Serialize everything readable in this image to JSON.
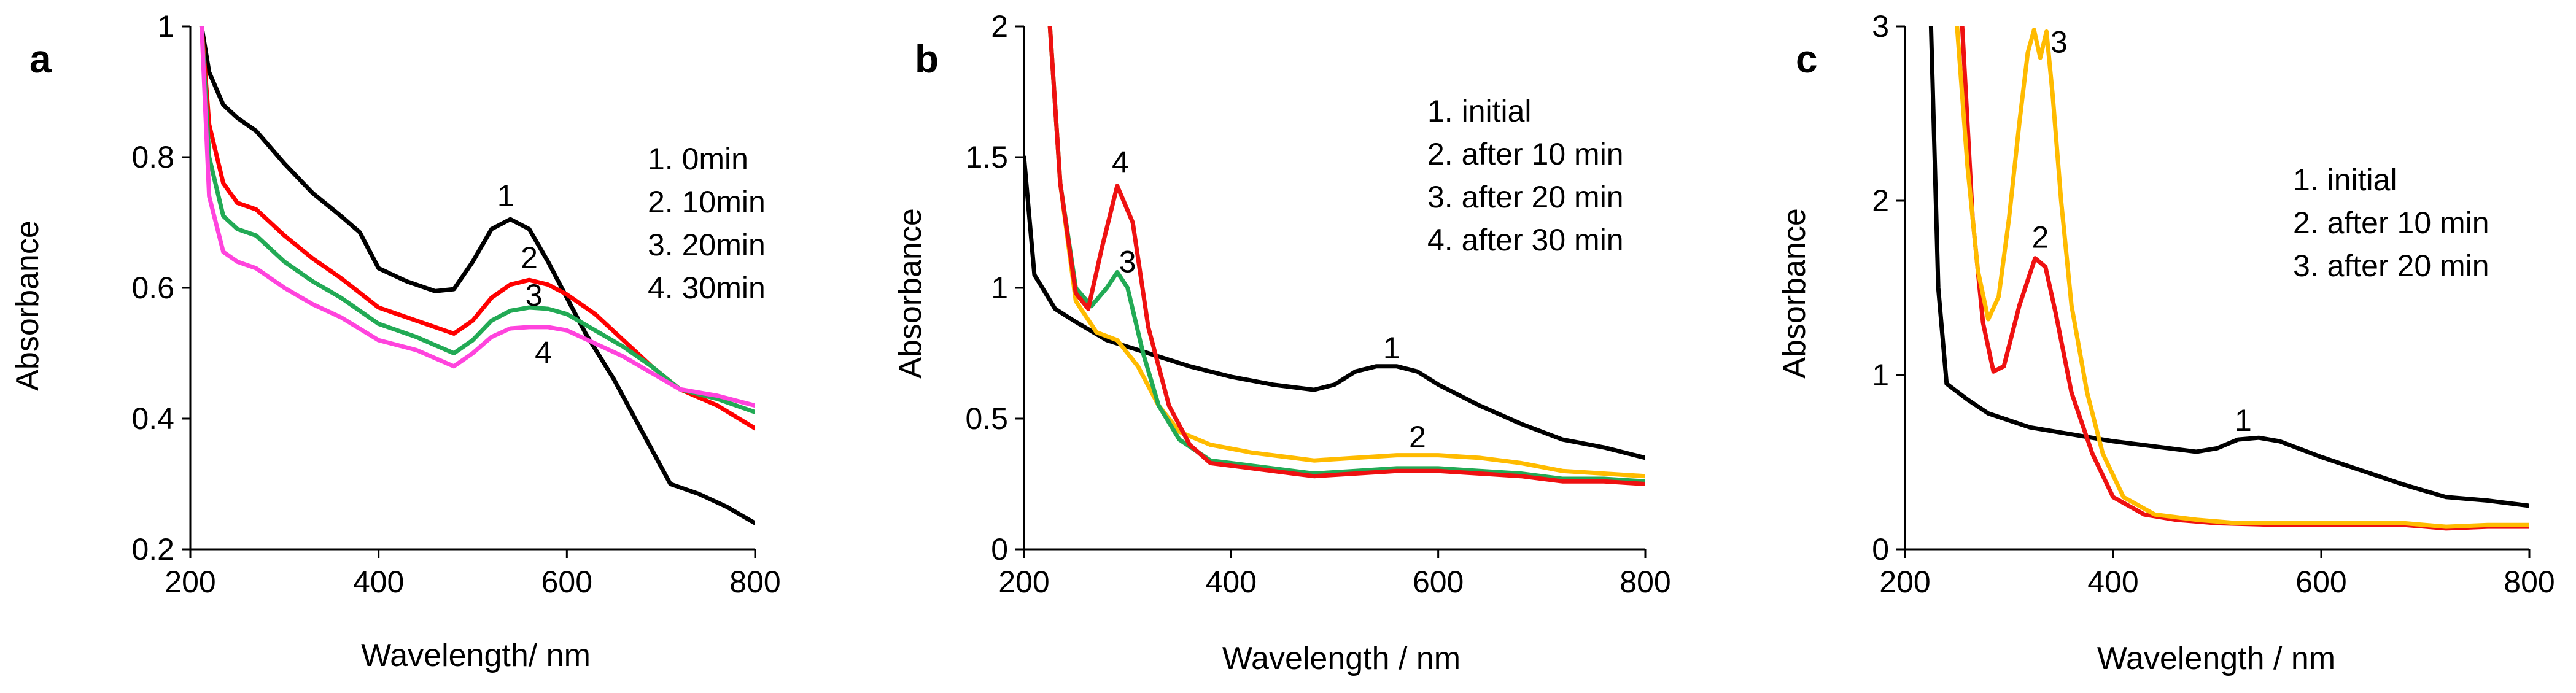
{
  "chart_data": [
    {
      "type": "line",
      "panel_label": "a",
      "xlabel": "Wavelength/ nm",
      "ylabel": "Absorbance",
      "xlim": [
        200,
        800
      ],
      "ylim": [
        0.2,
        1.0
      ],
      "xticks": [
        "200",
        "400",
        "600",
        "800"
      ],
      "yticks": [
        "0.2",
        "0.4",
        "0.6",
        "0.8",
        "1"
      ],
      "xtick_values": [
        200,
        400,
        600,
        800
      ],
      "ytick_values": [
        0.2,
        0.4,
        0.6,
        0.8,
        1.0
      ],
      "legend": [
        "1. 0min",
        "2. 10min",
        "3. 20min",
        "4. 30min"
      ],
      "series": [
        {
          "name": "1. 0min",
          "label": "1",
          "color": "#000000",
          "x": [
            212,
            220,
            235,
            250,
            270,
            300,
            330,
            360,
            380,
            400,
            430,
            460,
            480,
            500,
            520,
            540,
            560,
            580,
            600,
            620,
            650,
            680,
            710,
            740,
            770,
            800
          ],
          "y": [
            1.0,
            0.93,
            0.88,
            0.86,
            0.84,
            0.79,
            0.745,
            0.71,
            0.685,
            0.63,
            0.61,
            0.595,
            0.598,
            0.64,
            0.69,
            0.705,
            0.69,
            0.64,
            0.585,
            0.53,
            0.46,
            0.38,
            0.3,
            0.285,
            0.265,
            0.24
          ],
          "label_at": [
            535,
            0.725
          ]
        },
        {
          "name": "2. 10min",
          "label": "2",
          "color": "#ff0000",
          "x": [
            212,
            220,
            235,
            250,
            270,
            300,
            330,
            360,
            400,
            440,
            480,
            500,
            520,
            540,
            560,
            580,
            600,
            630,
            660,
            690,
            720,
            760,
            800
          ],
          "y": [
            1.0,
            0.85,
            0.76,
            0.73,
            0.72,
            0.68,
            0.645,
            0.615,
            0.57,
            0.55,
            0.53,
            0.55,
            0.585,
            0.605,
            0.612,
            0.605,
            0.59,
            0.56,
            0.52,
            0.48,
            0.445,
            0.42,
            0.385
          ],
          "label_at": [
            560,
            0.63
          ]
        },
        {
          "name": "3. 20min",
          "label": "3",
          "color": "#22aa55",
          "x": [
            212,
            220,
            235,
            250,
            270,
            300,
            330,
            360,
            400,
            440,
            480,
            500,
            520,
            540,
            560,
            580,
            600,
            630,
            660,
            690,
            720,
            760,
            800
          ],
          "y": [
            1.0,
            0.8,
            0.71,
            0.69,
            0.68,
            0.64,
            0.61,
            0.585,
            0.545,
            0.525,
            0.5,
            0.52,
            0.55,
            0.565,
            0.57,
            0.568,
            0.56,
            0.535,
            0.51,
            0.48,
            0.445,
            0.43,
            0.41
          ],
          "label_at": [
            565,
            0.573
          ]
        },
        {
          "name": "4. 30min",
          "label": "4",
          "color": "#ff44dd",
          "x": [
            212,
            220,
            235,
            250,
            270,
            300,
            330,
            360,
            400,
            440,
            480,
            500,
            520,
            540,
            560,
            580,
            600,
            630,
            660,
            690,
            720,
            760,
            800
          ],
          "y": [
            1.0,
            0.74,
            0.655,
            0.64,
            0.63,
            0.6,
            0.575,
            0.555,
            0.52,
            0.505,
            0.48,
            0.5,
            0.525,
            0.538,
            0.54,
            0.54,
            0.535,
            0.515,
            0.495,
            0.47,
            0.445,
            0.435,
            0.42
          ],
          "label_at": [
            575,
            0.485
          ]
        }
      ]
    },
    {
      "type": "line",
      "panel_label": "b",
      "xlabel": "Wavelength / nm",
      "ylabel": "Absorbance",
      "xlim": [
        200,
        800
      ],
      "ylim": [
        0,
        2
      ],
      "xticks": [
        "200",
        "400",
        "600",
        "800"
      ],
      "yticks": [
        "0",
        "0.5",
        "1",
        "1.5",
        "2"
      ],
      "xtick_values": [
        200,
        400,
        600,
        800
      ],
      "ytick_values": [
        0,
        0.5,
        1.0,
        1.5,
        2.0
      ],
      "legend": [
        "1. initial",
        "2. after 10 min",
        "3. after 20 min",
        "4. after 30 min"
      ],
      "series": [
        {
          "name": "1. initial",
          "label": "1",
          "color": "#000000",
          "x": [
            200,
            210,
            230,
            250,
            280,
            320,
            360,
            400,
            440,
            480,
            500,
            520,
            540,
            560,
            580,
            600,
            640,
            680,
            720,
            760,
            800
          ],
          "y": [
            1.5,
            1.05,
            0.92,
            0.87,
            0.8,
            0.75,
            0.7,
            0.66,
            0.63,
            0.61,
            0.63,
            0.68,
            0.7,
            0.7,
            0.68,
            0.63,
            0.55,
            0.48,
            0.42,
            0.39,
            0.35
          ],
          "label_at": [
            555,
            0.73
          ]
        },
        {
          "name": "2. after 10 min",
          "label": "2",
          "color": "#ffbb00",
          "x": [
            225,
            235,
            250,
            270,
            290,
            310,
            330,
            350,
            380,
            420,
            460,
            480,
            520,
            560,
            600,
            640,
            680,
            720,
            760,
            800
          ],
          "y": [
            2.0,
            1.4,
            0.95,
            0.83,
            0.8,
            0.7,
            0.55,
            0.45,
            0.4,
            0.37,
            0.35,
            0.34,
            0.35,
            0.36,
            0.36,
            0.35,
            0.33,
            0.3,
            0.29,
            0.28
          ],
          "label_at": [
            580,
            0.39
          ]
        },
        {
          "name": "3. after 20 min",
          "label": "3",
          "color": "#22aa55",
          "x": [
            225,
            235,
            250,
            265,
            280,
            290,
            300,
            315,
            330,
            350,
            380,
            420,
            460,
            480,
            520,
            560,
            600,
            640,
            680,
            720,
            760,
            800
          ],
          "y": [
            2.0,
            1.4,
            1.0,
            0.93,
            1.0,
            1.06,
            1.0,
            0.75,
            0.55,
            0.42,
            0.34,
            0.32,
            0.3,
            0.29,
            0.3,
            0.31,
            0.31,
            0.3,
            0.29,
            0.27,
            0.27,
            0.26
          ],
          "label_at": [
            300,
            1.06
          ]
        },
        {
          "name": "4. after 30 min",
          "label": "4",
          "color": "#ee1111",
          "x": [
            225,
            235,
            250,
            262,
            275,
            290,
            305,
            320,
            340,
            360,
            380,
            420,
            460,
            480,
            520,
            560,
            600,
            640,
            680,
            720,
            760,
            800
          ],
          "y": [
            2.0,
            1.4,
            0.98,
            0.92,
            1.15,
            1.39,
            1.25,
            0.85,
            0.55,
            0.4,
            0.33,
            0.31,
            0.29,
            0.28,
            0.29,
            0.3,
            0.3,
            0.29,
            0.28,
            0.26,
            0.26,
            0.25
          ],
          "label_at": [
            293,
            1.44
          ]
        }
      ]
    },
    {
      "type": "line",
      "panel_label": "c",
      "xlabel": "Wavelength / nm",
      "ylabel": "Absorbance",
      "xlim": [
        200,
        800
      ],
      "ylim": [
        0,
        3
      ],
      "xticks": [
        "200",
        "400",
        "600",
        "800"
      ],
      "yticks": [
        "0",
        "1",
        "2",
        "3"
      ],
      "xtick_values": [
        200,
        400,
        600,
        800
      ],
      "ytick_values": [
        0,
        1,
        2,
        3
      ],
      "legend": [
        "1. initial",
        "2. after 10 min",
        "3. after 20 min"
      ],
      "series": [
        {
          "name": "1. initial",
          "label": "1",
          "color": "#000000",
          "x": [
            225,
            232,
            240,
            260,
            280,
            320,
            360,
            400,
            440,
            480,
            500,
            520,
            540,
            560,
            600,
            640,
            680,
            720,
            760,
            800
          ],
          "y": [
            3.0,
            1.5,
            0.95,
            0.86,
            0.78,
            0.7,
            0.66,
            0.62,
            0.59,
            0.56,
            0.58,
            0.63,
            0.64,
            0.62,
            0.53,
            0.45,
            0.37,
            0.3,
            0.28,
            0.25
          ],
          "label_at": [
            525,
            0.68
          ]
        },
        {
          "name": "2. after 10 min",
          "label": "2",
          "color": "#ee1111",
          "x": [
            255,
            265,
            275,
            285,
            295,
            310,
            325,
            335,
            345,
            360,
            380,
            400,
            430,
            460,
            500,
            560,
            600,
            640,
            680,
            720,
            760,
            800
          ],
          "y": [
            3.0,
            1.9,
            1.3,
            1.02,
            1.05,
            1.4,
            1.67,
            1.62,
            1.35,
            0.9,
            0.55,
            0.3,
            0.2,
            0.17,
            0.15,
            0.14,
            0.14,
            0.14,
            0.14,
            0.12,
            0.13,
            0.13
          ],
          "label_at": [
            330,
            1.73
          ]
        },
        {
          "name": "3. after 20 min",
          "label": "3",
          "color": "#ffbb00",
          "x": [
            250,
            260,
            270,
            280,
            290,
            300,
            310,
            318,
            324,
            330,
            336,
            342,
            350,
            360,
            375,
            390,
            410,
            440,
            480,
            520,
            560,
            600,
            640,
            680,
            720,
            760,
            800
          ],
          "y": [
            3.0,
            2.2,
            1.6,
            1.32,
            1.45,
            1.9,
            2.45,
            2.85,
            2.98,
            2.82,
            2.97,
            2.6,
            2.0,
            1.4,
            0.9,
            0.55,
            0.3,
            0.2,
            0.17,
            0.15,
            0.15,
            0.15,
            0.15,
            0.15,
            0.13,
            0.14,
            0.14
          ],
          "label_at": [
            348,
            2.85
          ]
        }
      ]
    }
  ]
}
